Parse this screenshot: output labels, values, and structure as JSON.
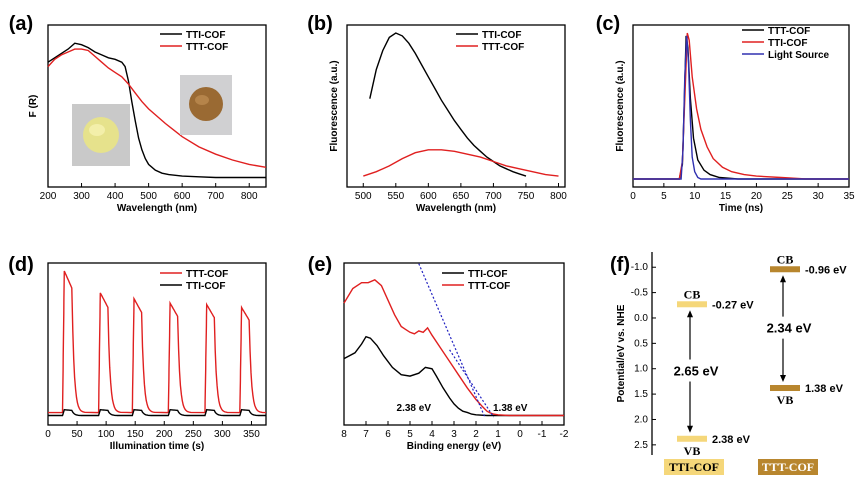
{
  "chart_data": [
    {
      "panel": "(a)",
      "type": "line",
      "xlabel": "Wavelength (nm)",
      "ylabel": "F (R)",
      "xlim": [
        200,
        850
      ],
      "xticks": [
        "200",
        "300",
        "400",
        "500",
        "600",
        "700",
        "800"
      ],
      "y_ticks_shown": false,
      "legend": "top-right",
      "series": [
        {
          "name": "TTI-COF",
          "color": "#000000",
          "x": [
            200,
            220,
            240,
            260,
            280,
            300,
            320,
            340,
            360,
            380,
            400,
            420,
            430,
            440,
            450,
            460,
            470,
            480,
            490,
            500,
            520,
            540,
            560,
            600,
            650,
            700,
            750,
            800,
            850
          ],
          "y": [
            0.8,
            0.83,
            0.86,
            0.89,
            0.93,
            0.92,
            0.9,
            0.87,
            0.85,
            0.83,
            0.82,
            0.8,
            0.77,
            0.67,
            0.53,
            0.4,
            0.28,
            0.2,
            0.14,
            0.1,
            0.06,
            0.04,
            0.03,
            0.02,
            0.015,
            0.01,
            0.01,
            0.01,
            0.01
          ]
        },
        {
          "name": "TTT-COF",
          "color": "#e02020",
          "x": [
            200,
            220,
            240,
            260,
            280,
            300,
            320,
            340,
            360,
            380,
            400,
            420,
            440,
            460,
            480,
            500,
            550,
            600,
            650,
            700,
            750,
            800,
            850
          ],
          "y": [
            0.77,
            0.82,
            0.85,
            0.87,
            0.89,
            0.89,
            0.88,
            0.84,
            0.8,
            0.76,
            0.73,
            0.7,
            0.65,
            0.59,
            0.53,
            0.48,
            0.38,
            0.29,
            0.22,
            0.17,
            0.13,
            0.1,
            0.08
          ]
        }
      ]
    },
    {
      "panel": "(b)",
      "type": "line",
      "xlabel": "Wavelength (nm)",
      "ylabel": "Fluorescence (a.u.)",
      "xlim": [
        475,
        810
      ],
      "xticks": [
        "500",
        "550",
        "600",
        "650",
        "700",
        "750",
        "800"
      ],
      "y_ticks_shown": false,
      "legend": "top-right",
      "series": [
        {
          "name": "TTI-COF",
          "color": "#000000",
          "x": [
            510,
            520,
            530,
            540,
            550,
            560,
            570,
            580,
            590,
            600,
            610,
            620,
            630,
            640,
            650,
            660,
            670,
            680,
            690,
            700,
            710,
            720,
            730,
            740,
            750
          ],
          "y": [
            0.55,
            0.75,
            0.88,
            0.97,
            1.0,
            0.98,
            0.93,
            0.86,
            0.78,
            0.7,
            0.62,
            0.54,
            0.47,
            0.4,
            0.34,
            0.28,
            0.23,
            0.19,
            0.15,
            0.12,
            0.09,
            0.07,
            0.05,
            0.035,
            0.02
          ]
        },
        {
          "name": "TTT-COF",
          "color": "#e02020",
          "x": [
            500,
            520,
            540,
            560,
            580,
            600,
            620,
            640,
            660,
            680,
            700,
            720,
            740,
            760,
            780,
            800
          ],
          "y": [
            0.02,
            0.05,
            0.09,
            0.14,
            0.18,
            0.2,
            0.2,
            0.19,
            0.17,
            0.15,
            0.12,
            0.09,
            0.07,
            0.05,
            0.03,
            0.02
          ]
        }
      ]
    },
    {
      "panel": "(c)",
      "type": "line",
      "xlabel": "Time (ns)",
      "ylabel": "Fluorescence (a.u.)",
      "xlim": [
        0,
        35
      ],
      "xticks": [
        "0",
        "5",
        "10",
        "15",
        "20",
        "25",
        "30",
        "35"
      ],
      "y_ticks_shown": false,
      "legend": "top-right",
      "series": [
        {
          "name": "TTT-COF",
          "color": "#000000",
          "x": [
            0,
            7.5,
            8.0,
            8.3,
            8.6,
            8.9,
            9.3,
            9.8,
            10.5,
            11.5,
            12.5,
            14,
            17,
            20,
            25,
            30,
            35
          ],
          "y": [
            0,
            0,
            0.1,
            0.5,
            0.98,
            0.9,
            0.55,
            0.28,
            0.13,
            0.06,
            0.03,
            0.01,
            0,
            0,
            0,
            0,
            0
          ]
        },
        {
          "name": "TTI-COF",
          "color": "#e02020",
          "x": [
            0,
            7.5,
            8.0,
            8.4,
            8.8,
            9.1,
            9.6,
            10.3,
            11,
            12,
            13,
            14.5,
            16,
            18,
            20,
            24,
            28,
            35
          ],
          "y": [
            0,
            0,
            0.12,
            0.55,
            1.0,
            0.95,
            0.7,
            0.48,
            0.34,
            0.22,
            0.14,
            0.08,
            0.05,
            0.03,
            0.02,
            0.01,
            0,
            0
          ]
        },
        {
          "name": "Light Source",
          "color": "#3030b0",
          "x": [
            0,
            7.8,
            8.1,
            8.4,
            8.7,
            9.0,
            9.3,
            9.6,
            10.0,
            10.5,
            11,
            35
          ],
          "y": [
            0,
            0,
            0.2,
            0.7,
            0.98,
            0.8,
            0.4,
            0.15,
            0.05,
            0.01,
            0,
            0
          ]
        }
      ]
    },
    {
      "panel": "(d)",
      "type": "line",
      "xlabel": "Illumination time (s)",
      "xlim": [
        0,
        375
      ],
      "xticks": [
        "0",
        "50",
        "100",
        "150",
        "200",
        "250",
        "300",
        "350"
      ],
      "y_ticks_shown": false,
      "legend": "top-right",
      "series": [
        {
          "name": "TTT-COF",
          "color": "#e02020",
          "on_times": [
            25,
            87,
            145,
            207,
            270,
            330
          ],
          "on_duration": 16,
          "peaks": [
            1.0,
            0.85,
            0.81,
            0.78,
            0.77,
            0.75
          ],
          "baseline": 0.03
        },
        {
          "name": "TTI-COF",
          "color": "#000000",
          "on_times": [
            25,
            87,
            145,
            207,
            270,
            330
          ],
          "on_duration": 16,
          "peaks": [
            0.05,
            0.05,
            0.05,
            0.05,
            0.05,
            0.05
          ],
          "baseline": 0.01
        }
      ]
    },
    {
      "panel": "(e)",
      "type": "line",
      "xlabel": "Binding energy (eV)",
      "xlim": [
        8,
        -2
      ],
      "xaxis_reversed": true,
      "xticks": [
        "8",
        "7",
        "6",
        "5",
        "4",
        "3",
        "2",
        "1",
        "0",
        "-1",
        "-2"
      ],
      "y_ticks_shown": false,
      "legend": "top-right",
      "series": [
        {
          "name": "TTI-COF",
          "color": "#000000",
          "x": [
            8,
            7.5,
            7.2,
            7.0,
            6.8,
            6.5,
            6.2,
            5.8,
            5.4,
            5.0,
            4.6,
            4.3,
            4.0,
            3.8,
            3.5,
            3.2,
            3.0,
            2.8,
            2.6,
            2.38,
            2.2,
            2.0,
            1.5,
            1.0,
            0.5,
            0,
            -1,
            -2
          ],
          "y": [
            0.4,
            0.44,
            0.5,
            0.55,
            0.54,
            0.49,
            0.42,
            0.34,
            0.29,
            0.28,
            0.3,
            0.34,
            0.33,
            0.28,
            0.2,
            0.13,
            0.09,
            0.06,
            0.04,
            0.03,
            0.02,
            0.015,
            0.01,
            0.01,
            0.01,
            0.01,
            0.01,
            0.01
          ]
        },
        {
          "name": "TTT-COF",
          "color": "#e02020",
          "x": [
            8,
            7.6,
            7.2,
            6.9,
            6.6,
            6.3,
            6.0,
            5.7,
            5.4,
            5.2,
            5.0,
            4.8,
            4.6,
            4.4,
            4.2,
            4.0,
            3.6,
            3.2,
            2.8,
            2.4,
            2.0,
            1.7,
            1.5,
            1.38,
            1.2,
            1.0,
            0.5,
            0,
            -1,
            -2
          ],
          "y": [
            0.78,
            0.88,
            0.92,
            0.92,
            0.94,
            0.9,
            0.8,
            0.7,
            0.62,
            0.6,
            0.58,
            0.57,
            0.59,
            0.58,
            0.61,
            0.56,
            0.47,
            0.38,
            0.29,
            0.2,
            0.12,
            0.07,
            0.04,
            0.03,
            0.02,
            0.015,
            0.01,
            0.01,
            0.01,
            0.01
          ]
        }
      ],
      "guides": [
        {
          "color": "#2020c0",
          "style": "dotted",
          "x": [
            4.6,
            1.6
          ],
          "y": [
            1.05,
            0.0
          ]
        },
        {
          "color": "#2020c0",
          "style": "dotted",
          "x": [
            3.2,
            1.2
          ],
          "y": [
            0.46,
            0.0
          ]
        }
      ],
      "annotations": [
        "2.38 eV",
        "1.38 eV"
      ]
    },
    {
      "panel": "(f)",
      "type": "diagram",
      "ylabel": "Potential/eV vs. NHE",
      "ylim": [
        2.7,
        -1.3
      ],
      "yticks": [
        "-1.0",
        "-0.5",
        "0.0",
        "0.5",
        "1.0",
        "1.5",
        "2.0",
        "2.5"
      ],
      "yticks_values": [
        -1.0,
        -0.5,
        0.0,
        0.5,
        1.0,
        1.5,
        2.0,
        2.5
      ],
      "materials": [
        {
          "name": "TTI-COF",
          "color": "#f5d77a",
          "cb": -0.27,
          "vb": 2.38,
          "cb_label": "CB",
          "vb_label": "VB",
          "cb_text": "-0.27 eV",
          "vb_text": "2.38 eV",
          "gap_text": "2.65 eV"
        },
        {
          "name": "TTT-COF",
          "color": "#b8862e",
          "cb": -0.96,
          "vb": 1.38,
          "cb_label": "CB",
          "vb_label": "VB",
          "cb_text": "-0.96 eV",
          "vb_text": "1.38 eV",
          "gap_text": "2.34 eV"
        }
      ]
    }
  ]
}
